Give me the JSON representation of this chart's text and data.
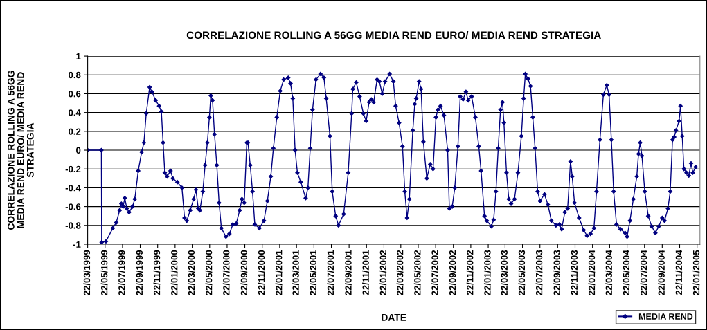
{
  "chart_data": {
    "type": "line",
    "title": "CORRELAZIONE ROLLING A 56GG MEDIA REND EURO/ MEDIA REND STRATEGIA",
    "xlabel": "DATE",
    "ylabel": "CORRELAZIONE ROLLING A 56GG\nMEDIA REND EURO/ MEDIA REND\nSTRATEGIA",
    "x": [
      "1999-03-22",
      "1999-05-09",
      "1999-05-10",
      "1999-05-25",
      "1999-06-18",
      "1999-06-30",
      "1999-07-12",
      "1999-07-18",
      "1999-07-24",
      "1999-07-30",
      "1999-08-06",
      "1999-08-14",
      "1999-08-26",
      "1999-09-03",
      "1999-09-15",
      "1999-09-27",
      "1999-10-05",
      "1999-10-13",
      "1999-10-25",
      "1999-11-02",
      "1999-11-15",
      "1999-11-27",
      "1999-12-05",
      "1999-12-11",
      "1999-12-17",
      "1999-12-25",
      "2000-01-06",
      "2000-01-14",
      "2000-01-30",
      "2000-02-15",
      "2000-02-24",
      "2000-03-03",
      "2000-03-15",
      "2000-03-27",
      "2000-04-04",
      "2000-04-12",
      "2000-04-18",
      "2000-04-28",
      "2000-05-06",
      "2000-05-14",
      "2000-05-21",
      "2000-05-26",
      "2000-06-01",
      "2000-06-08",
      "2000-06-16",
      "2000-06-24",
      "2000-07-02",
      "2000-07-18",
      "2000-07-30",
      "2000-08-11",
      "2000-08-23",
      "2000-09-04",
      "2000-09-12",
      "2000-09-20",
      "2000-09-29",
      "2000-10-03",
      "2000-10-11",
      "2000-10-19",
      "2000-10-27",
      "2000-11-12",
      "2000-11-28",
      "2000-12-10",
      "2000-12-22",
      "2000-12-31",
      "2001-01-12",
      "2001-01-24",
      "2001-02-05",
      "2001-02-21",
      "2001-03-01",
      "2001-03-09",
      "2001-03-17",
      "2001-03-25",
      "2001-04-06",
      "2001-04-23",
      "2001-05-01",
      "2001-05-09",
      "2001-05-17",
      "2001-05-29",
      "2001-06-14",
      "2001-06-26",
      "2001-07-04",
      "2001-07-17",
      "2001-07-25",
      "2001-08-06",
      "2001-08-16",
      "2001-09-03",
      "2001-09-19",
      "2001-10-01",
      "2001-10-05",
      "2001-10-17",
      "2001-10-29",
      "2001-11-11",
      "2001-11-21",
      "2001-12-01",
      "2001-12-09",
      "2001-12-17",
      "2001-12-29",
      "2002-01-06",
      "2002-01-16",
      "2002-01-26",
      "2002-02-11",
      "2002-02-24",
      "2002-03-04",
      "2002-03-16",
      "2002-03-28",
      "2002-04-05",
      "2002-04-13",
      "2002-04-21",
      "2002-05-03",
      "2002-05-10",
      "2002-05-15",
      "2002-05-25",
      "2002-06-01",
      "2002-06-09",
      "2002-06-21",
      "2002-07-03",
      "2002-07-13",
      "2002-07-23",
      "2002-07-30",
      "2002-08-08",
      "2002-08-20",
      "2002-09-02",
      "2002-09-08",
      "2002-09-18",
      "2002-09-27",
      "2002-10-08",
      "2002-10-16",
      "2002-10-26",
      "2002-11-05",
      "2002-11-13",
      "2002-11-25",
      "2002-12-08",
      "2002-12-20",
      "2002-12-28",
      "2003-01-09",
      "2003-01-17",
      "2003-02-02",
      "2003-02-10",
      "2003-02-18",
      "2003-02-26",
      "2003-03-06",
      "2003-03-13",
      "2003-03-18",
      "2003-03-27",
      "2003-04-04",
      "2003-04-12",
      "2003-04-24",
      "2003-05-06",
      "2003-05-18",
      "2003-05-26",
      "2003-06-01",
      "2003-06-10",
      "2003-06-19",
      "2003-06-27",
      "2003-07-05",
      "2003-07-14",
      "2003-07-22",
      "2003-08-07",
      "2003-08-19",
      "2003-08-31",
      "2003-09-16",
      "2003-09-28",
      "2003-10-06",
      "2003-10-17",
      "2003-10-27",
      "2003-11-06",
      "2003-11-12",
      "2003-11-20",
      "2003-12-06",
      "2003-12-22",
      "2004-01-03",
      "2004-01-15",
      "2004-01-27",
      "2004-02-05",
      "2004-02-17",
      "2004-02-29",
      "2004-03-12",
      "2004-03-20",
      "2004-03-28",
      "2004-04-05",
      "2004-04-15",
      "2004-04-29",
      "2004-05-15",
      "2004-05-22",
      "2004-06-01",
      "2004-06-13",
      "2004-06-25",
      "2004-07-01",
      "2004-07-07",
      "2004-07-13",
      "2004-07-23",
      "2004-08-04",
      "2004-08-16",
      "2004-08-29",
      "2004-09-10",
      "2004-09-22",
      "2004-09-30",
      "2004-10-12",
      "2004-10-20",
      "2004-10-28",
      "2004-11-03",
      "2004-11-09",
      "2004-11-20",
      "2004-11-25",
      "2004-12-01",
      "2004-12-07",
      "2004-12-16",
      "2004-12-24",
      "2005-01-01",
      "2005-01-07",
      "2005-01-17"
    ],
    "series": [
      {
        "name": "MEDIA REND",
        "color": "#000080",
        "values": [
          0,
          0,
          -0.98,
          -0.97,
          -0.83,
          -0.77,
          -0.64,
          -0.57,
          -0.6,
          -0.51,
          -0.62,
          -0.66,
          -0.6,
          -0.52,
          -0.22,
          -0.02,
          0.08,
          0.39,
          0.67,
          0.62,
          0.53,
          0.47,
          0.41,
          0.08,
          -0.24,
          -0.28,
          -0.22,
          -0.3,
          -0.34,
          -0.4,
          -0.72,
          -0.75,
          -0.64,
          -0.52,
          -0.42,
          -0.62,
          -0.64,
          -0.44,
          -0.16,
          0.08,
          0.35,
          0.58,
          0.53,
          0.17,
          -0.16,
          -0.56,
          -0.83,
          -0.92,
          -0.89,
          -0.79,
          -0.78,
          -0.64,
          -0.52,
          -0.56,
          0.08,
          0.08,
          -0.16,
          -0.44,
          -0.79,
          -0.83,
          -0.75,
          -0.54,
          -0.28,
          0.02,
          0.35,
          0.63,
          0.75,
          0.77,
          0.71,
          0.55,
          0,
          -0.24,
          -0.34,
          -0.51,
          -0.4,
          0.02,
          0.43,
          0.75,
          0.81,
          0.77,
          0.55,
          0.15,
          -0.44,
          -0.7,
          -0.8,
          -0.68,
          -0.24,
          0.39,
          0.65,
          0.72,
          0.57,
          0.39,
          0.31,
          0.51,
          0.54,
          0.51,
          0.75,
          0.73,
          0.6,
          0.73,
          0.81,
          0.73,
          0.47,
          0.29,
          0.04,
          -0.44,
          -0.72,
          -0.52,
          0.21,
          0.49,
          0.55,
          0.73,
          0.65,
          0.09,
          -0.3,
          -0.15,
          -0.2,
          0.35,
          0.43,
          0.47,
          0.37,
          0,
          -0.62,
          -0.6,
          -0.4,
          0.04,
          0.57,
          0.54,
          0.62,
          0.53,
          0.57,
          0.35,
          0.04,
          -0.22,
          -0.7,
          -0.75,
          -0.81,
          -0.74,
          -0.44,
          0.02,
          0.43,
          0.51,
          0.29,
          -0.24,
          -0.52,
          -0.57,
          -0.52,
          -0.24,
          0.15,
          0.55,
          0.81,
          0.76,
          0.68,
          0.35,
          0.02,
          -0.44,
          -0.54,
          -0.47,
          -0.58,
          -0.75,
          -0.8,
          -0.79,
          -0.84,
          -0.66,
          -0.62,
          -0.12,
          -0.28,
          -0.56,
          -0.72,
          -0.85,
          -0.91,
          -0.89,
          -0.83,
          -0.44,
          0.11,
          0.59,
          0.69,
          0.59,
          0.11,
          -0.44,
          -0.79,
          -0.84,
          -0.88,
          -0.92,
          -0.75,
          -0.52,
          -0.28,
          -0.04,
          0.08,
          -0.06,
          -0.44,
          -0.7,
          -0.81,
          -0.88,
          -0.81,
          -0.72,
          -0.75,
          -0.62,
          -0.44,
          0.11,
          0.14,
          0.21,
          0.31,
          0.47,
          0.15,
          -0.2,
          -0.24,
          -0.27,
          -0.14,
          -0.24,
          -0.18
        ]
      }
    ],
    "xlim": [
      "1999-03-22",
      "2005-02-01"
    ],
    "xticks": [
      {
        "value": "1999-03-22",
        "label": "22/03/1999"
      },
      {
        "value": "1999-05-22",
        "label": "22/05/1999"
      },
      {
        "value": "1999-07-22",
        "label": "22/07/1999"
      },
      {
        "value": "1999-09-22",
        "label": "22/09/1999"
      },
      {
        "value": "1999-11-22",
        "label": "22/11/1999"
      },
      {
        "value": "2000-01-22",
        "label": "22/01/2000"
      },
      {
        "value": "2000-03-22",
        "label": "22/03/2000"
      },
      {
        "value": "2000-05-22",
        "label": "22/05/2000"
      },
      {
        "value": "2000-07-22",
        "label": "22/07/2000"
      },
      {
        "value": "2000-09-22",
        "label": "22/09/2000"
      },
      {
        "value": "2000-11-22",
        "label": "22/11/2000"
      },
      {
        "value": "2001-01-22",
        "label": "22/01/2001"
      },
      {
        "value": "2001-03-22",
        "label": "22/03/2001"
      },
      {
        "value": "2001-05-22",
        "label": "22/05/2001"
      },
      {
        "value": "2001-07-22",
        "label": "22/07/2001"
      },
      {
        "value": "2001-09-22",
        "label": "22/09/2001"
      },
      {
        "value": "2001-11-22",
        "label": "22/11/2001"
      },
      {
        "value": "2002-01-22",
        "label": "22/01/2002"
      },
      {
        "value": "2002-03-22",
        "label": "22/03/2002"
      },
      {
        "value": "2002-05-22",
        "label": "22/05/2002"
      },
      {
        "value": "2002-07-22",
        "label": "22/07/2002"
      },
      {
        "value": "2002-09-22",
        "label": "22/09/2002"
      },
      {
        "value": "2002-11-22",
        "label": "22/11/2002"
      },
      {
        "value": "2003-01-22",
        "label": "22/01/2003"
      },
      {
        "value": "2003-03-22",
        "label": "22/03/2003"
      },
      {
        "value": "2003-05-22",
        "label": "22/05/2003"
      },
      {
        "value": "2003-07-22",
        "label": "22/07/2003"
      },
      {
        "value": "2003-09-22",
        "label": "22/09/2003"
      },
      {
        "value": "2003-11-22",
        "label": "22/11/2003"
      },
      {
        "value": "2004-01-22",
        "label": "22/01/2004"
      },
      {
        "value": "2004-03-22",
        "label": "22/03/2004"
      },
      {
        "value": "2004-05-22",
        "label": "22/05/2004"
      },
      {
        "value": "2004-07-22",
        "label": "22/07/2004"
      },
      {
        "value": "2004-09-22",
        "label": "22/09/2004"
      },
      {
        "value": "2004-11-22",
        "label": "22/11/2004"
      },
      {
        "value": "2005-01-22",
        "label": "22/01/2005"
      }
    ],
    "ylim": [
      -1,
      1
    ],
    "yticks": [
      -1,
      -0.8,
      -0.6,
      -0.4,
      -0.2,
      0,
      0.2,
      0.4,
      0.6,
      0.8,
      1
    ],
    "grid": "y",
    "legend": "bottom right",
    "marker": "diamond",
    "line_style": "solid"
  }
}
